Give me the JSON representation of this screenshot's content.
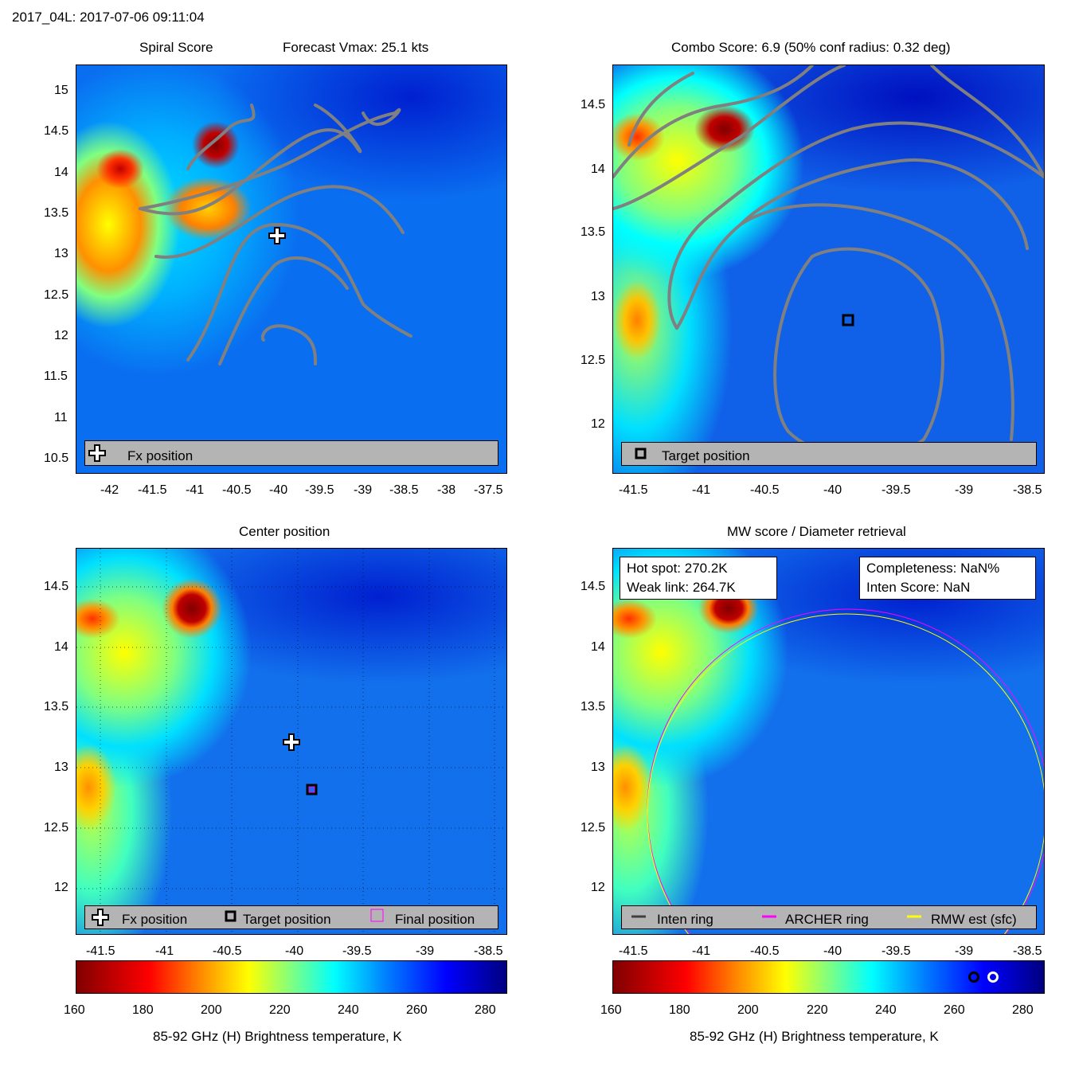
{
  "header": "2017_04L: 2017-07-06 09:11:04",
  "colors": {
    "contour": "#808080",
    "legend_bg": "#b4b4b4",
    "archer_ring": "#ff00ff",
    "rmw_ring": "#ffff00",
    "inten_ring": "#404040"
  },
  "panels": {
    "spiral": {
      "title_left": "Spiral Score",
      "title_right": "Forecast Vmax: 25.1 kts",
      "legend": [
        "Fx position"
      ]
    },
    "combo": {
      "title": "Combo Score: 6.9  (50% conf radius: 0.32 deg)",
      "legend": [
        "Target position"
      ]
    },
    "center": {
      "title": "Center position",
      "legend": [
        "Fx position",
        "Target position",
        "Final position"
      ]
    },
    "mw": {
      "title": "MW score / Diameter retrieval",
      "box_left": [
        "Hot spot: 270.2K",
        "Weak link: 264.7K"
      ],
      "box_right": [
        "Completeness: NaN%",
        "Inten Score: NaN"
      ],
      "legend": [
        "Inten ring",
        "ARCHER ring",
        "RMW est (sfc)"
      ]
    }
  },
  "colorbar": {
    "label": "85-92 GHz (H) Brightness temperature, K",
    "ticks": [
      "160",
      "180",
      "200",
      "220",
      "240",
      "260",
      "280"
    ],
    "range": [
      160,
      285
    ],
    "markers": [
      {
        "name": "weak-link",
        "value": 264.7,
        "style": "black ring"
      },
      {
        "name": "hot-spot",
        "value": 270.2,
        "style": "white ring"
      }
    ]
  },
  "chart_data": [
    {
      "type": "heatmap",
      "title": "Spiral Score",
      "subtitle": "Forecast Vmax: 25.1 kts",
      "xticks": [
        "-42",
        "-41.5",
        "-41",
        "-40.5",
        "-40",
        "-39.5",
        "-39",
        "-38.5",
        "-38",
        "-37.5"
      ],
      "yticks": [
        "15",
        "14.5",
        "14",
        "13.5",
        "13",
        "12.5",
        "12",
        "11.5",
        "11",
        "10.5"
      ],
      "xlim": [
        -42.45,
        -37.35
      ],
      "ylim": [
        10.35,
        15.35
      ],
      "markers": [
        {
          "label": "Fx position",
          "lon": -40.0,
          "lat": 13.22,
          "symbol": "white cross"
        }
      ]
    },
    {
      "type": "heatmap",
      "title": "Combo Score: 6.9  (50% conf radius: 0.32 deg)",
      "xticks": [
        "-41.5",
        "-41",
        "-40.5",
        "-40",
        "-39.5",
        "-39",
        "-38.5"
      ],
      "yticks": [
        "14.5",
        "14",
        "13.5",
        "13",
        "12.5",
        "12"
      ],
      "xlim": [
        -41.65,
        -38.4
      ],
      "ylim": [
        11.6,
        14.8
      ],
      "markers": [
        {
          "label": "Target position",
          "lon": -39.88,
          "lat": 12.82,
          "symbol": "black square"
        }
      ]
    },
    {
      "type": "heatmap",
      "title": "Center position",
      "xticks": [
        "-41.5",
        "-41",
        "-40.5",
        "-40",
        "-39.5",
        "-39",
        "-38.5"
      ],
      "yticks": [
        "14.5",
        "14",
        "13.5",
        "13",
        "12.5",
        "12"
      ],
      "xlim": [
        -41.65,
        -38.4
      ],
      "ylim": [
        11.6,
        14.8
      ],
      "grid": true,
      "markers": [
        {
          "label": "Fx position",
          "lon": -40.04,
          "lat": 13.22,
          "symbol": "white cross"
        },
        {
          "label": "Target position",
          "lon": -39.88,
          "lat": 12.82,
          "symbol": "black square"
        },
        {
          "label": "Final position",
          "lon": -39.88,
          "lat": 12.82,
          "symbol": "magenta square"
        }
      ]
    },
    {
      "type": "heatmap",
      "title": "MW score / Diameter retrieval",
      "xticks": [
        "-41.5",
        "-41",
        "-40.5",
        "-40",
        "-39.5",
        "-39",
        "-38.5"
      ],
      "yticks": [
        "14.5",
        "14",
        "13.5",
        "13",
        "12.5",
        "12"
      ],
      "xlim": [
        -41.65,
        -38.4
      ],
      "ylim": [
        11.6,
        14.8
      ],
      "rings": [
        {
          "label": "ARCHER ring",
          "center_lon": -39.85,
          "center_lat": 12.82,
          "radius_deg": 1.5,
          "color": "#ff00ff"
        },
        {
          "label": "RMW est (sfc)",
          "center_lon": -39.85,
          "center_lat": 12.8,
          "radius_deg": 1.48,
          "color": "#ffff00"
        }
      ]
    }
  ]
}
